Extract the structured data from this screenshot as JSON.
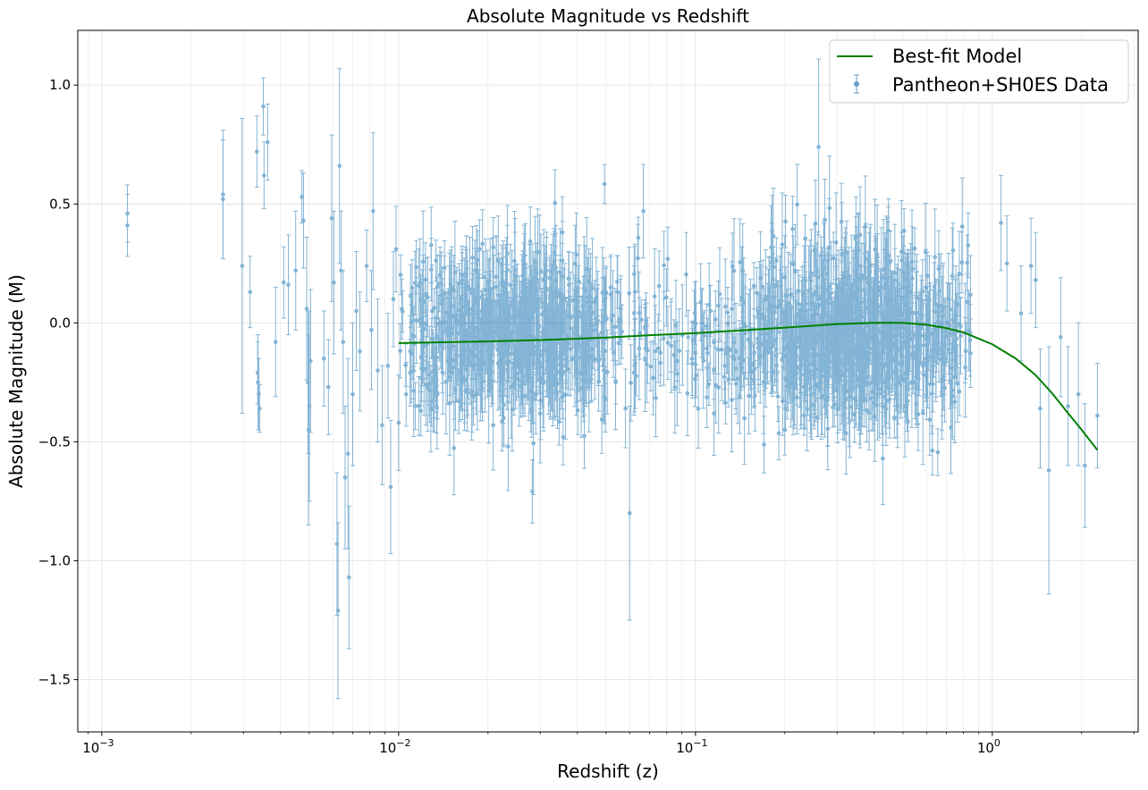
{
  "chart_data": {
    "type": "scatter",
    "title": "Absolute Magnitude vs Redshift",
    "xlabel": "Redshift (z)",
    "ylabel": "Absolute Magnitude (M)",
    "xscale": "log",
    "xlim": [
      0.00083,
      3.1
    ],
    "ylim": [
      -1.72,
      1.23
    ],
    "x_ticks": [
      {
        "value": 0.001,
        "base": "10",
        "exp": "−3"
      },
      {
        "value": 0.01,
        "base": "10",
        "exp": "−2"
      },
      {
        "value": 0.1,
        "base": "10",
        "exp": "−1"
      },
      {
        "value": 1,
        "base": "10",
        "exp": "0"
      }
    ],
    "y_ticks": [
      {
        "value": 1.0,
        "label": "1.0"
      },
      {
        "value": 0.5,
        "label": "0.5"
      },
      {
        "value": 0.0,
        "label": "0.0"
      },
      {
        "value": -0.5,
        "label": "−0.5"
      },
      {
        "value": -1.0,
        "label": "−1.0"
      },
      {
        "value": -1.5,
        "label": "−1.5"
      }
    ],
    "grid": true,
    "legend": {
      "position": "top-right",
      "entries": [
        "Best-fit Model",
        "Pantheon+SH0ES Data"
      ]
    },
    "series": [
      {
        "name": "Best-fit Model",
        "kind": "line",
        "color": "#008000",
        "x": [
          0.01,
          0.02,
          0.03,
          0.05,
          0.07,
          0.1,
          0.15,
          0.2,
          0.3,
          0.4,
          0.5,
          0.6,
          0.7,
          0.8,
          1.0,
          1.2,
          1.4,
          1.6,
          1.8,
          2.0,
          2.26
        ],
        "y": [
          -0.085,
          -0.078,
          -0.072,
          -0.062,
          -0.052,
          -0.043,
          -0.03,
          -0.02,
          -0.005,
          0.0,
          0.0,
          -0.008,
          -0.022,
          -0.04,
          -0.09,
          -0.15,
          -0.22,
          -0.3,
          -0.38,
          -0.45,
          -0.535
        ]
      },
      {
        "name": "Pantheon+SH0ES Data",
        "kind": "errorbar",
        "color": "#1f77b4",
        "points": [
          [
            0.00122,
            0.46,
            0.12
          ],
          [
            0.00122,
            0.41,
            0.13
          ],
          [
            0.00256,
            0.54,
            0.27
          ],
          [
            0.00256,
            0.52,
            0.25
          ],
          [
            0.00297,
            0.24,
            0.62
          ],
          [
            0.00316,
            0.13,
            0.15
          ],
          [
            0.00333,
            0.72,
            0.15
          ],
          [
            0.00335,
            -0.21,
            0.13
          ],
          [
            0.00336,
            -0.25,
            0.2
          ],
          [
            0.00338,
            -0.3,
            0.15
          ],
          [
            0.0034,
            -0.36,
            0.1
          ],
          [
            0.0035,
            0.91,
            0.12
          ],
          [
            0.00352,
            0.62,
            0.14
          ],
          [
            0.00362,
            0.76,
            0.16
          ],
          [
            0.00385,
            -0.08,
            0.23
          ],
          [
            0.0041,
            0.17,
            0.15
          ],
          [
            0.00425,
            0.16,
            0.21
          ],
          [
            0.0045,
            0.22,
            0.25
          ],
          [
            0.00472,
            0.53,
            0.11
          ],
          [
            0.00478,
            0.43,
            0.2
          ],
          [
            0.0049,
            0.06,
            0.3
          ],
          [
            0.00495,
            -0.25,
            0.3
          ],
          [
            0.00497,
            -0.45,
            0.4
          ],
          [
            0.005,
            -0.35,
            0.4
          ],
          [
            0.00505,
            -0.16,
            0.3
          ],
          [
            0.0056,
            -0.15,
            0.2
          ],
          [
            0.0058,
            -0.27,
            0.2
          ],
          [
            0.00595,
            0.44,
            0.35
          ],
          [
            0.00605,
            0.17,
            0.3
          ],
          [
            0.0062,
            -0.93,
            0.3
          ],
          [
            0.00625,
            -1.21,
            0.37
          ],
          [
            0.00632,
            0.66,
            0.41
          ],
          [
            0.0064,
            0.22,
            0.25
          ],
          [
            0.0065,
            -0.08,
            0.3
          ],
          [
            0.0066,
            -0.65,
            0.3
          ],
          [
            0.0068,
            -1.07,
            0.3
          ],
          [
            0.00675,
            -0.55,
            0.4
          ],
          [
            0.007,
            -0.3,
            0.3
          ],
          [
            0.0072,
            0.05,
            0.25
          ],
          [
            0.0074,
            -0.12,
            0.25
          ],
          [
            0.0078,
            0.24,
            0.15
          ],
          [
            0.0081,
            -0.03,
            0.25
          ],
          [
            0.0082,
            0.47,
            0.33
          ],
          [
            0.0085,
            -0.2,
            0.3
          ],
          [
            0.0088,
            -0.43,
            0.25
          ],
          [
            0.0092,
            -0.18,
            0.22
          ],
          [
            0.0094,
            -0.69,
            0.28
          ],
          [
            0.0096,
            0.1,
            0.2
          ],
          [
            0.0098,
            0.31,
            0.18
          ],
          [
            0.01,
            -0.42,
            0.2
          ],
          [
            0.06,
            -0.8,
            0.45
          ],
          [
            0.26,
            0.74,
            0.37
          ],
          [
            1.07,
            0.42,
            0.2
          ],
          [
            1.12,
            0.25,
            0.2
          ],
          [
            1.25,
            0.04,
            0.2
          ],
          [
            1.35,
            0.24,
            0.2
          ],
          [
            1.4,
            0.18,
            0.2
          ],
          [
            1.45,
            -0.36,
            0.25
          ],
          [
            1.55,
            -0.62,
            0.52
          ],
          [
            1.7,
            -0.06,
            0.25
          ],
          [
            1.8,
            -0.35,
            0.25
          ],
          [
            1.95,
            -0.3,
            0.3
          ],
          [
            2.05,
            -0.6,
            0.26
          ],
          [
            2.26,
            -0.39,
            0.22
          ]
        ],
        "dense_cloud": {
          "count": 1700,
          "x_range": [
            0.01,
            0.85
          ],
          "mean_M": -0.05,
          "std_M": 0.17,
          "error_range": [
            0.08,
            0.22
          ]
        }
      }
    ]
  }
}
